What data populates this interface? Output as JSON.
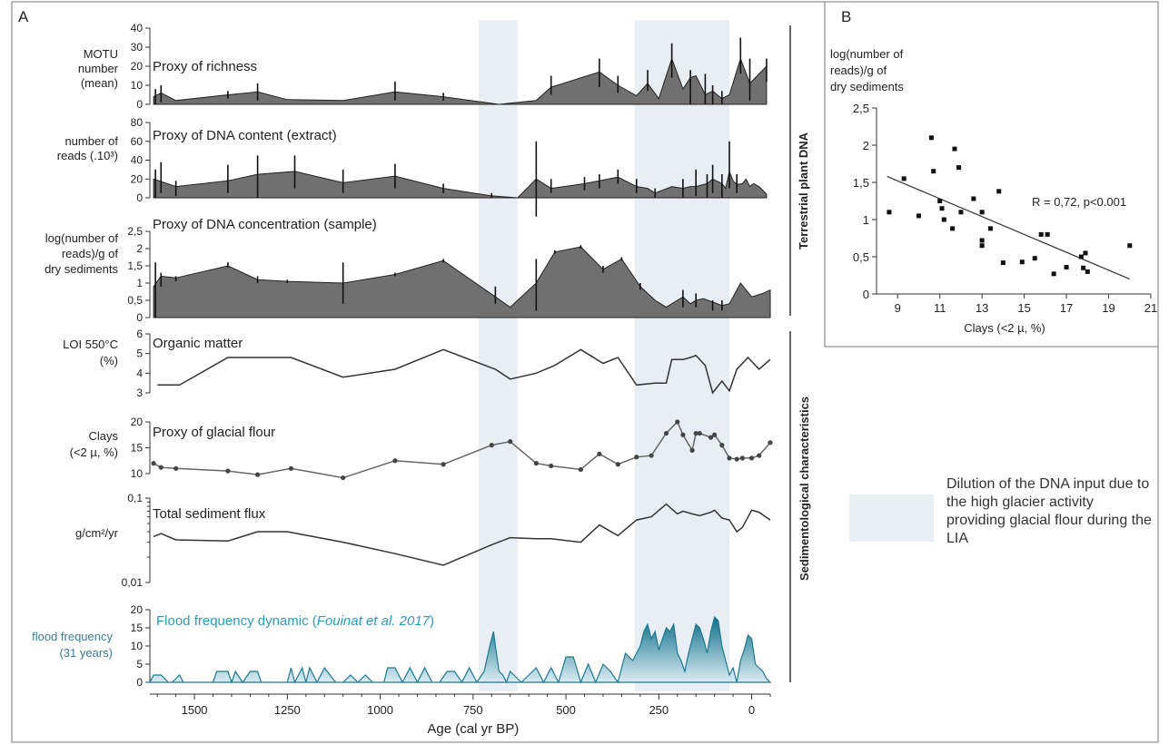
{
  "panel_a_label": "A",
  "panel_b_label": "B",
  "side_labels": {
    "dna": "Terrestrial plant DNA",
    "sed": "Sedimentological characteristics"
  },
  "legend": {
    "text": "Dilution of the DNA input due to the high glacier activity providing glacial flour during the LIA",
    "color": "#e8eef4"
  },
  "x_axis": {
    "label": "Age (cal yr BP)",
    "ticks": [
      1500,
      1250,
      1000,
      750,
      500,
      250,
      0
    ],
    "range": [
      1620,
      -50
    ],
    "reversed": true
  },
  "shaded_bands": [
    [
      735,
      630
    ],
    [
      315,
      60
    ]
  ],
  "chart_data": [
    {
      "id": "richness",
      "type": "area",
      "fill": "#707070",
      "title": "Proxy of richness",
      "ylabel": "MOTU number (mean)",
      "ylim": [
        0,
        40
      ],
      "yticks": [
        0,
        10,
        20,
        30,
        40
      ],
      "x": [
        1610,
        1590,
        1550,
        1410,
        1330,
        1250,
        1100,
        960,
        830,
        680,
        580,
        540,
        410,
        360,
        310,
        280,
        250,
        215,
        185,
        165,
        150,
        125,
        105,
        80,
        60,
        30,
        5,
        -40
      ],
      "y": [
        4,
        6,
        2,
        5,
        6.5,
        2.5,
        2,
        6.5,
        4,
        0,
        2,
        9,
        17,
        10,
        4.5,
        11,
        3,
        24,
        8,
        14,
        15,
        5,
        7,
        3,
        5,
        24,
        11,
        20
      ],
      "err": [
        [
          1605,
          0,
          8
        ],
        [
          1590,
          1,
          10
        ],
        [
          1410,
          3,
          7
        ],
        [
          1330,
          2,
          11
        ],
        [
          960,
          2,
          12
        ],
        [
          830,
          2,
          6
        ],
        [
          540,
          5,
          15
        ],
        [
          410,
          9,
          24
        ],
        [
          360,
          6,
          15
        ],
        [
          280,
          7,
          18
        ],
        [
          215,
          14,
          32
        ],
        [
          165,
          0,
          18
        ],
        [
          125,
          0,
          16
        ],
        [
          105,
          0,
          10
        ],
        [
          80,
          0,
          7
        ],
        [
          30,
          16,
          35
        ],
        [
          5,
          2,
          24
        ],
        [
          -40,
          12,
          24
        ]
      ]
    },
    {
      "id": "dna-content",
      "type": "area",
      "fill": "#707070",
      "title": "Proxy of DNA content (extract)",
      "ylabel": "number of reads (.10³)",
      "ylim": [
        0,
        80
      ],
      "yticks": [
        0,
        20,
        40,
        60,
        80
      ],
      "x": [
        1610,
        1595,
        1550,
        1410,
        1330,
        1230,
        1100,
        960,
        830,
        700,
        630,
        580,
        540,
        450,
        410,
        360,
        310,
        280,
        260,
        215,
        185,
        165,
        150,
        120,
        105,
        80,
        70,
        60,
        50,
        40,
        25,
        15,
        5,
        -5,
        -20,
        -40
      ],
      "y": [
        20,
        18,
        12,
        18,
        25,
        28,
        16,
        23,
        10,
        2,
        0,
        20,
        10,
        15,
        18,
        22,
        12,
        10,
        5,
        12,
        10,
        12,
        12,
        15,
        20,
        15,
        10,
        28,
        18,
        14,
        15,
        20,
        12,
        15,
        12,
        4
      ],
      "err": [
        [
          1605,
          0,
          30
        ],
        [
          1590,
          5,
          38
        ],
        [
          1550,
          2,
          18
        ],
        [
          1410,
          5,
          35
        ],
        [
          1330,
          0,
          45
        ],
        [
          1230,
          10,
          45
        ],
        [
          1100,
          5,
          30
        ],
        [
          960,
          10,
          36
        ],
        [
          830,
          5,
          15
        ],
        [
          700,
          0,
          5
        ],
        [
          580,
          -20,
          60
        ],
        [
          540,
          5,
          20
        ],
        [
          450,
          8,
          22
        ],
        [
          410,
          10,
          25
        ],
        [
          360,
          15,
          30
        ],
        [
          310,
          5,
          20
        ],
        [
          260,
          0,
          10
        ],
        [
          185,
          0,
          20
        ],
        [
          150,
          2,
          30
        ],
        [
          120,
          0,
          25
        ],
        [
          105,
          5,
          35
        ],
        [
          80,
          0,
          25
        ],
        [
          60,
          10,
          60
        ],
        [
          40,
          5,
          25
        ]
      ]
    },
    {
      "id": "dna-concentration",
      "type": "area",
      "fill": "#707070",
      "title": "Proxy of DNA concentration (sample)",
      "ylabel": "log(number of reads)/g of dry sediments",
      "ylim": [
        0,
        2.5
      ],
      "yticks": [
        "0",
        "0,5",
        "1",
        "1,5",
        "2",
        "2,5"
      ],
      "x": [
        1610,
        1590,
        1550,
        1410,
        1330,
        1250,
        1100,
        960,
        830,
        690,
        650,
        580,
        530,
        460,
        400,
        350,
        300,
        260,
        230,
        185,
        165,
        150,
        130,
        105,
        80,
        60,
        30,
        0,
        -30,
        -50
      ],
      "y": [
        0.9,
        1.2,
        1.15,
        1.5,
        1.1,
        1.05,
        1.0,
        1.25,
        1.65,
        0.6,
        0.3,
        1.0,
        1.9,
        2.05,
        1.4,
        1.7,
        0.9,
        0.5,
        0.3,
        0.6,
        0.4,
        0.5,
        0.55,
        0.45,
        0.35,
        0.4,
        1.0,
        0.6,
        0.7,
        0.8
      ],
      "err": [
        [
          1605,
          0,
          1.6
        ],
        [
          1590,
          0.9,
          1.3
        ],
        [
          1550,
          1.05,
          1.2
        ],
        [
          1410,
          1.45,
          1.6
        ],
        [
          1330,
          1.0,
          1.2
        ],
        [
          1250,
          1.0,
          1.1
        ],
        [
          1100,
          0.4,
          1.6
        ],
        [
          960,
          1.2,
          1.3
        ],
        [
          830,
          1.6,
          1.7
        ],
        [
          690,
          0.4,
          0.9
        ],
        [
          580,
          0.2,
          1.7
        ],
        [
          530,
          1.85,
          1.95
        ],
        [
          460,
          2.0,
          2.1
        ],
        [
          400,
          1.3,
          1.5
        ],
        [
          350,
          1.65,
          1.75
        ],
        [
          300,
          0.8,
          1.0
        ],
        [
          185,
          0.3,
          0.8
        ],
        [
          150,
          0.3,
          0.7
        ],
        [
          105,
          0.2,
          0.5
        ],
        [
          80,
          0.2,
          0.5
        ]
      ]
    },
    {
      "id": "organic-matter",
      "type": "line",
      "color": "#333333",
      "title": "Organic matter",
      "ylabel": "LOI 550°C (%)",
      "ylim": [
        3,
        6
      ],
      "yticks": [
        3,
        4,
        5,
        6
      ],
      "x": [
        1600,
        1540,
        1410,
        1240,
        1100,
        960,
        830,
        690,
        650,
        580,
        530,
        460,
        400,
        360,
        310,
        260,
        230,
        215,
        185,
        165,
        150,
        125,
        105,
        80,
        60,
        40,
        10,
        -20,
        -50
      ],
      "y": [
        3.4,
        3.4,
        4.8,
        4.8,
        3.8,
        4.2,
        5.2,
        4.2,
        3.7,
        4.0,
        4.4,
        5.2,
        4.5,
        4.8,
        3.4,
        3.5,
        3.5,
        4.7,
        4.7,
        4.8,
        4.9,
        4.4,
        3.0,
        3.6,
        3.1,
        4.2,
        4.8,
        4.2,
        4.7
      ]
    },
    {
      "id": "glacial-flour",
      "type": "line",
      "color": "#666666",
      "title": "Proxy of glacial flour",
      "ylabel": "Clays (<2 µ, %)",
      "ylim": [
        10,
        20
      ],
      "yticks": [
        10,
        15,
        20
      ],
      "x": [
        1610,
        1590,
        1550,
        1410,
        1330,
        1240,
        1100,
        960,
        830,
        700,
        650,
        580,
        540,
        460,
        410,
        360,
        310,
        270,
        230,
        200,
        185,
        160,
        150,
        140,
        110,
        100,
        80,
        60,
        40,
        25,
        0,
        -20,
        -50
      ],
      "y": [
        12,
        11.2,
        11,
        10.5,
        9.8,
        11,
        9.2,
        12.5,
        11.8,
        15.5,
        16.2,
        12,
        11.5,
        10.8,
        13.8,
        11.8,
        13.2,
        13.5,
        17.8,
        20,
        17.5,
        14.5,
        17.8,
        17.8,
        17,
        17.5,
        15.5,
        13,
        12.8,
        13,
        13,
        13.5,
        16
      ]
    },
    {
      "id": "sediment-flux",
      "type": "line",
      "color": "#333333",
      "title": "Total sediment flux",
      "ylabel": "g/cm²/yr",
      "yscale": "log",
      "ylim": [
        0.01,
        0.1
      ],
      "yticks": [
        "0,01",
        "0,1"
      ],
      "x": [
        1610,
        1590,
        1550,
        1410,
        1330,
        1250,
        1100,
        960,
        830,
        700,
        650,
        580,
        540,
        460,
        410,
        360,
        310,
        270,
        230,
        200,
        185,
        160,
        140,
        110,
        100,
        80,
        60,
        40,
        25,
        0,
        -20,
        -50
      ],
      "y": [
        0.035,
        0.038,
        0.032,
        0.031,
        0.04,
        0.04,
        0.03,
        0.022,
        0.016,
        0.028,
        0.034,
        0.033,
        0.033,
        0.03,
        0.048,
        0.036,
        0.055,
        0.06,
        0.085,
        0.065,
        0.07,
        0.065,
        0.062,
        0.068,
        0.072,
        0.058,
        0.055,
        0.04,
        0.045,
        0.072,
        0.068,
        0.055
      ]
    },
    {
      "id": "flood-frequency",
      "type": "area",
      "color": "#1b7a94",
      "title": "Flood frequency dynamic (Fouinat et al. 2017)",
      "ylabel": "flood frequency (31 years)",
      "ylim": [
        0,
        20
      ],
      "yticks": [
        0,
        5,
        10,
        15,
        20
      ],
      "x": [
        1630,
        1620,
        1610,
        1590,
        1570,
        1560,
        1540,
        1530,
        1450,
        1440,
        1430,
        1410,
        1400,
        1390,
        1370,
        1350,
        1330,
        1320,
        1250,
        1240,
        1230,
        1210,
        1200,
        1190,
        1170,
        1150,
        1120,
        1100,
        1080,
        1060,
        1040,
        1020,
        990,
        980,
        960,
        940,
        920,
        900,
        880,
        860,
        840,
        820,
        800,
        780,
        760,
        740,
        720,
        705,
        695,
        690,
        680,
        670,
        660,
        650,
        640,
        620,
        600,
        580,
        560,
        540,
        520,
        500,
        480,
        460,
        440,
        420,
        400,
        380,
        360,
        340,
        320,
        300,
        290,
        280,
        270,
        260,
        250,
        240,
        230,
        220,
        210,
        200,
        190,
        180,
        170,
        160,
        150,
        140,
        130,
        120,
        110,
        100,
        90,
        80,
        70,
        60,
        50,
        40,
        30,
        20,
        10,
        0,
        -10,
        -20,
        -30,
        -40,
        -50
      ],
      "y": [
        0,
        0,
        2,
        2,
        0,
        0,
        2,
        0,
        0,
        3,
        3,
        3,
        0,
        3,
        0,
        3,
        3,
        0,
        0,
        4,
        0,
        4,
        0,
        4,
        0,
        4,
        0,
        0,
        2,
        0,
        2,
        0,
        0,
        4,
        4,
        0,
        4,
        0,
        4,
        0,
        0,
        3,
        3,
        0,
        4,
        0,
        3,
        10,
        14,
        10,
        3,
        2,
        0,
        3,
        2,
        0,
        2,
        4,
        0,
        4,
        0,
        7,
        7,
        0,
        5,
        0,
        5,
        3,
        0,
        8,
        6,
        10,
        14,
        16,
        12,
        14,
        9,
        12,
        15,
        14,
        16,
        8,
        6,
        3,
        8,
        12,
        16,
        15,
        12,
        8,
        14,
        18,
        17,
        10,
        6,
        2,
        4,
        0,
        6,
        9,
        13,
        12,
        5,
        4,
        3,
        1,
        0
      ]
    }
  ],
  "scatter": {
    "id": "scatter-b",
    "type": "scatter",
    "ylabel": "log(number of reads)/g of dry sediments",
    "xlabel": "Clays (<2 µ, %)",
    "xlim": [
      8,
      21
    ],
    "xticks": [
      9,
      11,
      13,
      15,
      17,
      19,
      21
    ],
    "ylim": [
      0,
      2.5
    ],
    "yticks": [
      "0",
      "0,5",
      "1",
      "1,5",
      "2",
      "2,5"
    ],
    "annotation": "R = 0,72, p<0.001",
    "regression": [
      [
        8.5,
        1.58
      ],
      [
        20,
        0.2
      ]
    ],
    "points": [
      [
        8.6,
        1.1
      ],
      [
        9.3,
        1.55
      ],
      [
        10,
        1.05
      ],
      [
        10.6,
        2.1
      ],
      [
        10.7,
        1.65
      ],
      [
        11,
        1.25
      ],
      [
        11.1,
        1.15
      ],
      [
        11.2,
        1.0
      ],
      [
        11.6,
        0.88
      ],
      [
        11.7,
        1.95
      ],
      [
        11.9,
        1.7
      ],
      [
        12,
        1.1
      ],
      [
        12.6,
        1.28
      ],
      [
        13,
        1.1
      ],
      [
        13,
        0.72
      ],
      [
        13,
        0.65
      ],
      [
        13.4,
        0.88
      ],
      [
        13.8,
        1.38
      ],
      [
        14,
        0.42
      ],
      [
        14.9,
        0.43
      ],
      [
        15.5,
        0.48
      ],
      [
        15.8,
        0.8
      ],
      [
        16.1,
        0.8
      ],
      [
        16.4,
        0.27
      ],
      [
        17,
        0.36
      ],
      [
        17.7,
        0.5
      ],
      [
        17.8,
        0.35
      ],
      [
        17.9,
        0.55
      ],
      [
        18,
        0.3
      ],
      [
        20,
        0.65
      ]
    ]
  }
}
